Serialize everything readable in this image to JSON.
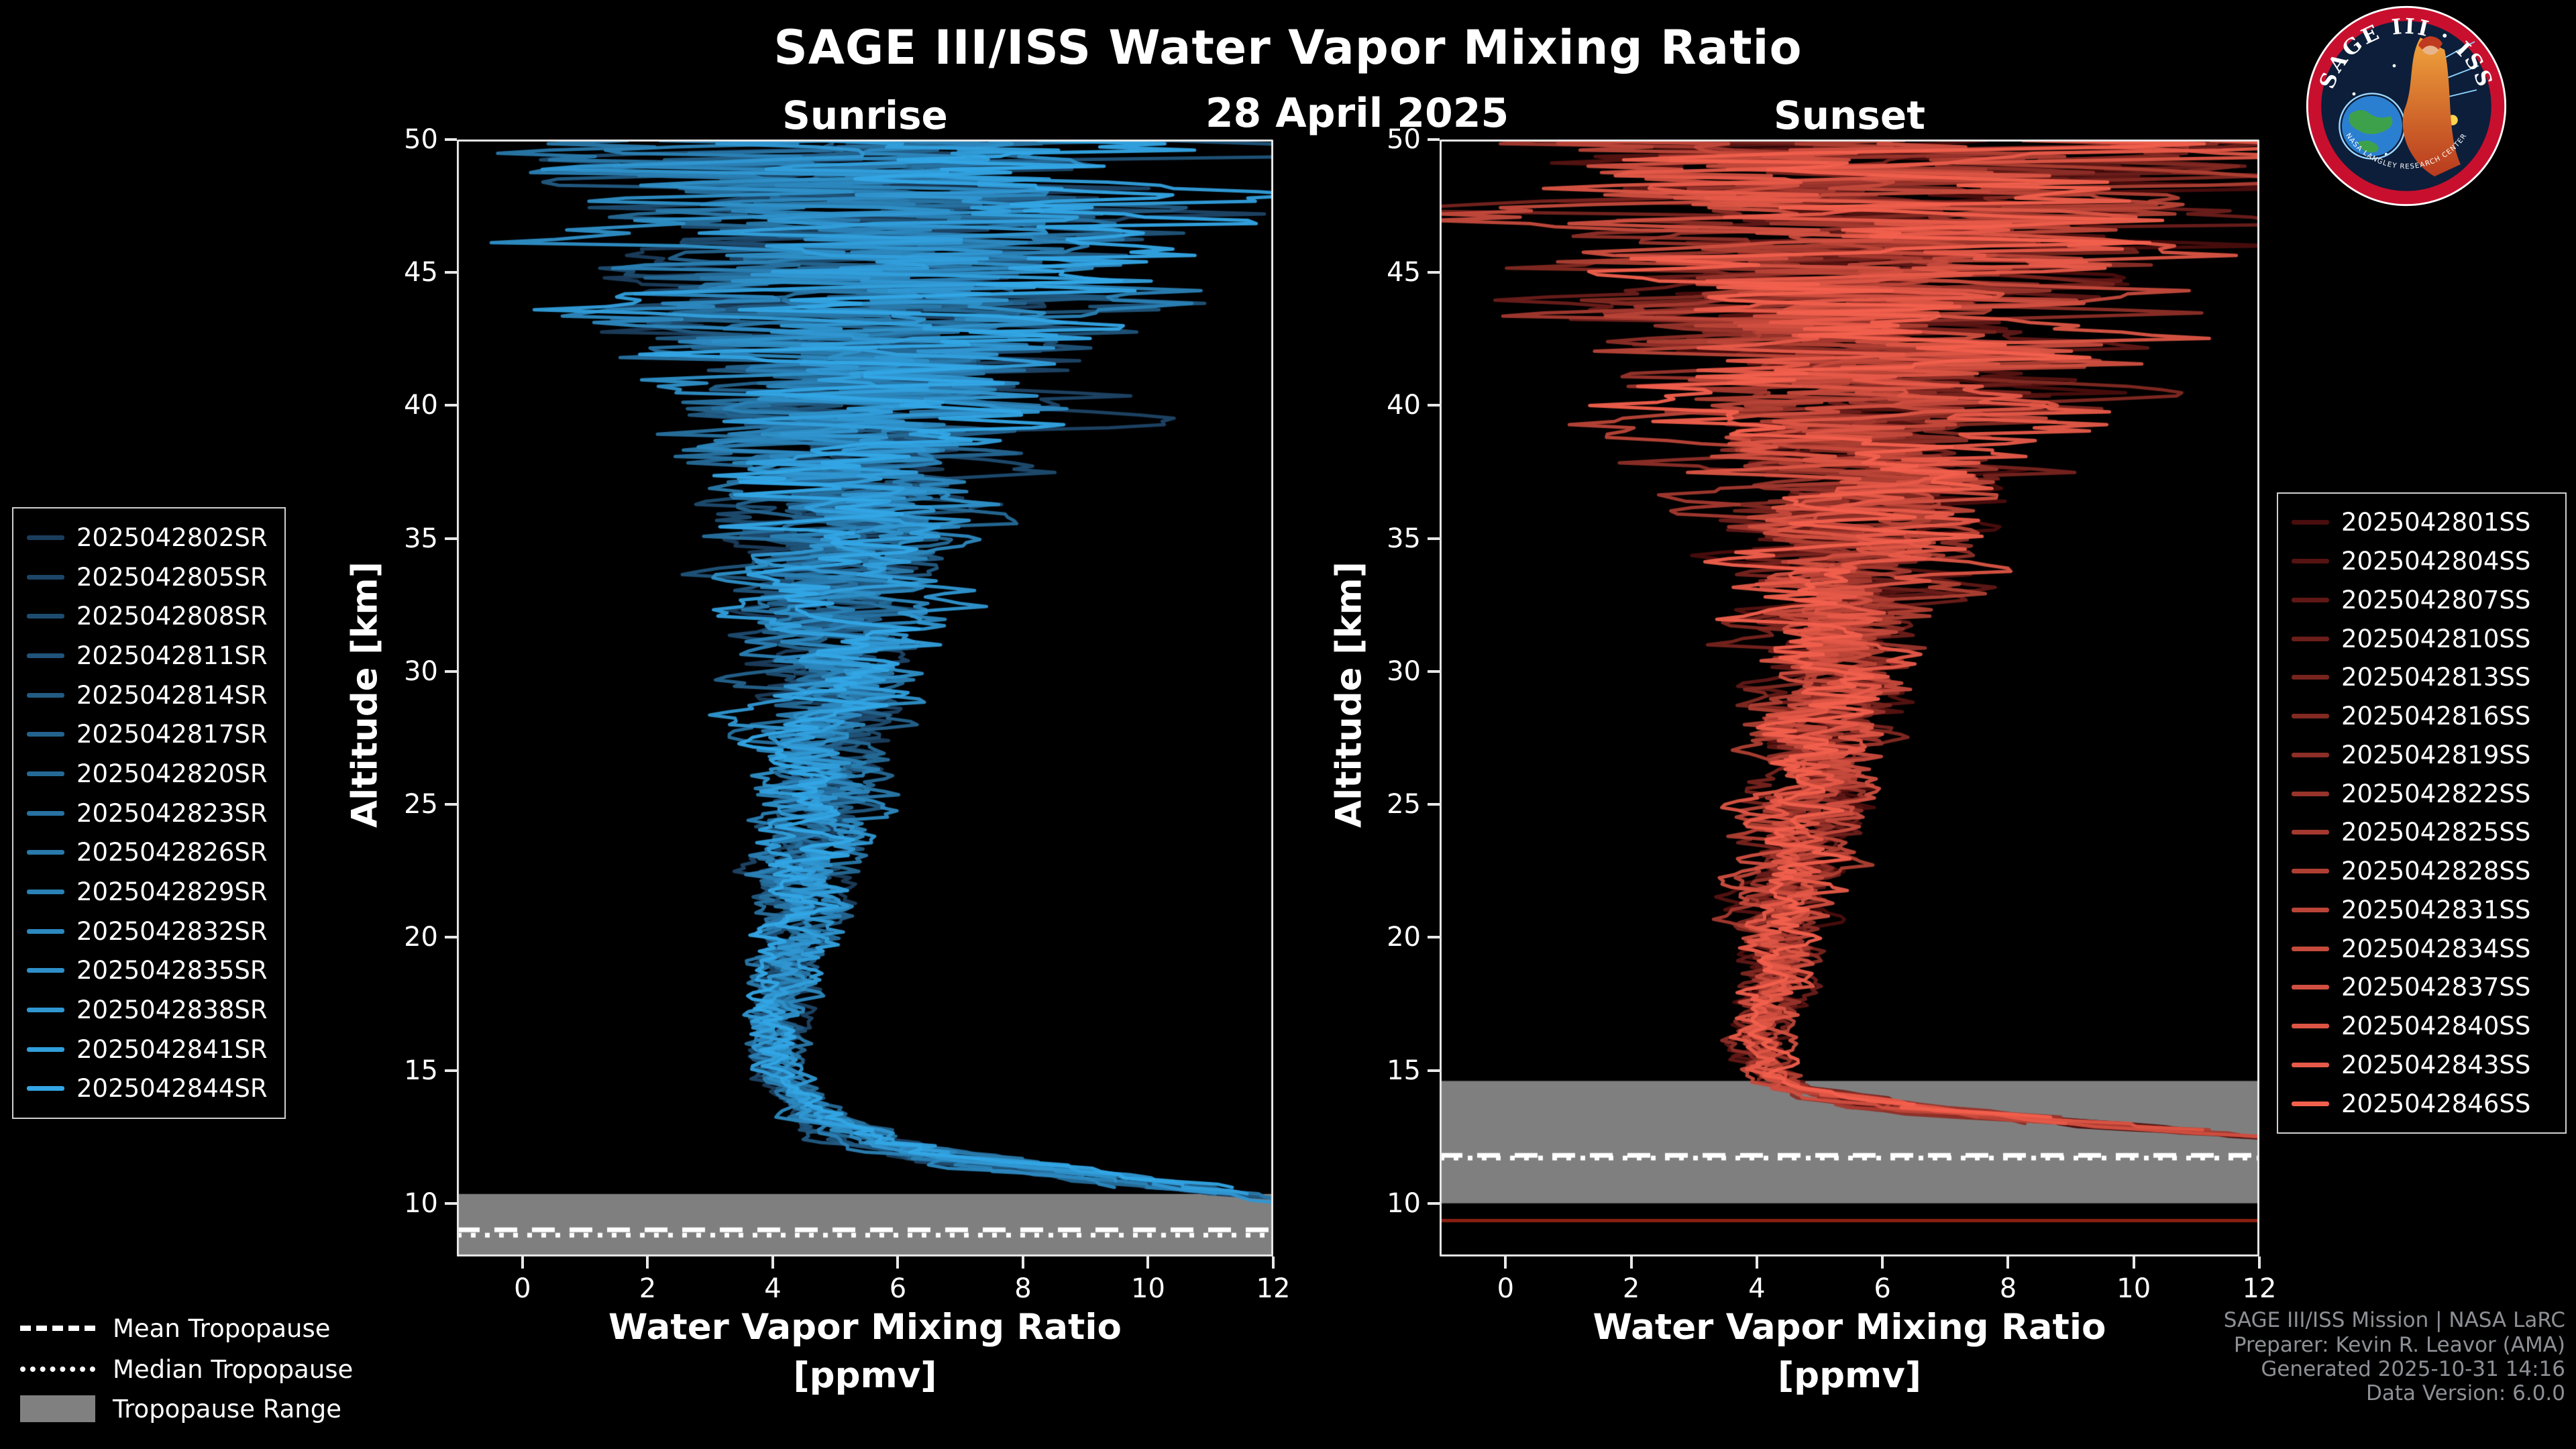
{
  "header": {
    "title": "SAGE III/ISS Water Vapor Mixing Ratio",
    "date": "28 April 2025"
  },
  "logo": {
    "arc_text": "SAGE III · ISS",
    "arc_text_bottom": "NASA LANGLEY RESEARCH CENTER"
  },
  "footer": {
    "line1": "SAGE III/ISS Mission | NASA LaRC",
    "line2": "Preparer: Kevin R. Leavor (AMA)",
    "line3": "Generated 2025-10-31 14:16",
    "line4": "Data Version: 6.0.0"
  },
  "tropopause_legend": {
    "mean": "Mean Tropopause",
    "median": "Median Tropopause",
    "range": "Tropopause Range"
  },
  "chart_data": {
    "type": "line",
    "title": "SAGE III/ISS Water Vapor Mixing Ratio",
    "subtitle": "28 April 2025",
    "xlabel": "Water Vapor Mixing Ratio",
    "xlabel_units": "[ppmv]",
    "ylabel": "Altitude [km]",
    "xlim": [
      -1.05,
      12
    ],
    "ylim": [
      8,
      50
    ],
    "xticks": [
      0,
      2,
      4,
      6,
      8,
      10,
      12
    ],
    "yticks": [
      10,
      15,
      20,
      25,
      30,
      35,
      40,
      45,
      50
    ],
    "grid": false,
    "background": "#000000",
    "spine_color": "#e8e8e8",
    "tropopause_band_color": "#7f7f7f",
    "panels": [
      {
        "id": "sunrise",
        "title": "Sunrise",
        "line_color_start": "#1b3d5c",
        "line_color_end": "#33a6e6",
        "legend_position": "outside-left",
        "series": [
          "2025042802SR",
          "2025042805SR",
          "2025042808SR",
          "2025042811SR",
          "2025042814SR",
          "2025042817SR",
          "2025042820SR",
          "2025042823SR",
          "2025042826SR",
          "2025042829SR",
          "2025042832SR",
          "2025042835SR",
          "2025042838SR",
          "2025042841SR",
          "2025042844SR"
        ],
        "tropopause": {
          "mean_km": 9.0,
          "median_km": 8.8,
          "range_km": [
            8.0,
            10.35
          ]
        },
        "profile_envelope": {
          "altitude_km": [
            50,
            46,
            42,
            38,
            34,
            30,
            26,
            22,
            19,
            17,
            15.5,
            14.5,
            13.5,
            12.5,
            11.5,
            10.8,
            10.0
          ],
          "mean_ppmv": [
            6.0,
            5.8,
            5.6,
            5.5,
            5.2,
            5.0,
            4.8,
            4.5,
            4.3,
            4.1,
            4.0,
            4.2,
            4.6,
            5.4,
            7.2,
            9.8,
            12.6
          ],
          "spread_ppmv": [
            5.8,
            5.2,
            4.2,
            2.8,
            1.9,
            1.5,
            1.1,
            0.9,
            0.7,
            0.6,
            0.5,
            0.5,
            0.6,
            0.9,
            1.3,
            1.1,
            0.7
          ]
        },
        "profile_bottom_km": 10.0
      },
      {
        "id": "sunset",
        "title": "Sunset",
        "line_color_start": "#4a0d0d",
        "line_color_end": "#f2604d",
        "legend_position": "outside-right",
        "series": [
          "2025042801SS",
          "2025042804SS",
          "2025042807SS",
          "2025042810SS",
          "2025042813SS",
          "2025042816SS",
          "2025042819SS",
          "2025042822SS",
          "2025042825SS",
          "2025042828SS",
          "2025042831SS",
          "2025042834SS",
          "2025042837SS",
          "2025042840SS",
          "2025042843SS",
          "2025042846SS"
        ],
        "tropopause": {
          "mean_km": 11.8,
          "median_km": 11.7,
          "range_km": [
            10.0,
            14.6
          ]
        },
        "artifact_line_km": 9.35,
        "artifact_line_color": "#8a1f12",
        "profile_envelope": {
          "altitude_km": [
            50,
            46,
            42,
            38,
            34,
            30,
            26,
            22,
            19,
            17,
            16,
            15,
            14.3,
            13.6,
            13.0,
            12.4
          ],
          "mean_ppmv": [
            6.0,
            5.9,
            5.7,
            5.6,
            5.4,
            5.1,
            4.9,
            4.6,
            4.3,
            4.1,
            4.0,
            4.1,
            4.7,
            6.2,
            9.2,
            12.8
          ],
          "spread_ppmv": [
            6.2,
            5.6,
            4.6,
            3.2,
            2.1,
            1.5,
            1.1,
            0.9,
            0.7,
            0.6,
            0.5,
            0.5,
            0.6,
            0.9,
            1.2,
            0.8
          ]
        },
        "profile_bottom_km": 12.4
      }
    ]
  }
}
